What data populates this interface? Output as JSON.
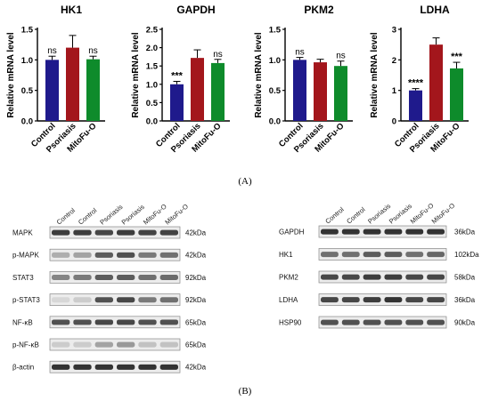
{
  "panel_a_label": "(A)",
  "panel_b_label": "(B)",
  "colors": {
    "control": "#1f1a8c",
    "psoriasis": "#a3161c",
    "mitofu": "#0e8b2b",
    "axis": "#000000"
  },
  "chart_data": [
    {
      "type": "bar",
      "title": "HK1",
      "ylabel": "Relative mRNA level",
      "categories": [
        "Control",
        "Psoriasis",
        "MitoFu-O"
      ],
      "values": [
        1.0,
        1.2,
        1.01
      ],
      "errors": [
        0.06,
        0.2,
        0.05
      ],
      "annotations": [
        "ns",
        "",
        "ns"
      ],
      "ylim": [
        0,
        1.5
      ],
      "yticks": [
        0.0,
        0.5,
        1.0,
        1.5
      ],
      "tick_labels": [
        "0.0",
        "0.5",
        "1.0",
        "1.5"
      ]
    },
    {
      "type": "bar",
      "title": "GAPDH",
      "ylabel": "Relative mRNA level",
      "categories": [
        "Control",
        "Psoriasis",
        "MitoFu-O"
      ],
      "values": [
        1.0,
        1.72,
        1.58
      ],
      "errors": [
        0.08,
        0.22,
        0.1
      ],
      "annotations": [
        "***",
        "",
        "ns"
      ],
      "ylim": [
        0,
        2.5
      ],
      "yticks": [
        0.0,
        0.5,
        1.0,
        1.5,
        2.0,
        2.5
      ],
      "tick_labels": [
        "0.0",
        "0.5",
        "1.0",
        "1.5",
        "2.0",
        "2.5"
      ]
    },
    {
      "type": "bar",
      "title": "PKM2",
      "ylabel": "Relative mRNA level",
      "categories": [
        "Control",
        "Psoriasis",
        "MitoFu-O"
      ],
      "values": [
        1.0,
        0.96,
        0.9
      ],
      "errors": [
        0.04,
        0.05,
        0.08
      ],
      "annotations": [
        "ns",
        "",
        "ns"
      ],
      "ylim": [
        0,
        1.5
      ],
      "yticks": [
        0.0,
        0.5,
        1.0,
        1.5
      ],
      "tick_labels": [
        "0.0",
        "0.5",
        "1.0",
        "1.5"
      ]
    },
    {
      "type": "bar",
      "title": "LDHA",
      "ylabel": "Relative mRNA level",
      "categories": [
        "Control",
        "Psoriasis",
        "MitoFu-O"
      ],
      "values": [
        1.0,
        2.5,
        1.72
      ],
      "errors": [
        0.06,
        0.22,
        0.2
      ],
      "annotations": [
        "****",
        "",
        "***"
      ],
      "ylim": [
        0,
        3
      ],
      "yticks": [
        0,
        1,
        2,
        3
      ],
      "tick_labels": [
        "0",
        "1",
        "2",
        "3"
      ]
    }
  ],
  "western_left": {
    "lanes": [
      "Control",
      "Control",
      "Psoriasis",
      "Psoriasis",
      "MitoFu-O",
      "MitoFu-O"
    ],
    "rows": [
      {
        "label": "MAPK",
        "size": "42kDa",
        "intensity": [
          0.85,
          0.85,
          0.8,
          0.85,
          0.82,
          0.82
        ]
      },
      {
        "label": "p-MAPK",
        "size": "42kDa",
        "intensity": [
          0.3,
          0.35,
          0.7,
          0.75,
          0.55,
          0.6
        ]
      },
      {
        "label": "STAT3",
        "size": "92kDa",
        "intensity": [
          0.5,
          0.55,
          0.7,
          0.7,
          0.6,
          0.62
        ]
      },
      {
        "label": "p-STAT3",
        "size": "92kDa",
        "intensity": [
          0.1,
          0.15,
          0.75,
          0.8,
          0.55,
          0.6
        ]
      },
      {
        "label": "NF-κB",
        "size": "65kDa",
        "intensity": [
          0.75,
          0.75,
          0.8,
          0.8,
          0.75,
          0.75
        ]
      },
      {
        "label": "p-NF-κB",
        "size": "65kDa",
        "intensity": [
          0.15,
          0.15,
          0.35,
          0.4,
          0.2,
          0.2
        ]
      },
      {
        "label": "β-actin",
        "size": "42kDa",
        "intensity": [
          0.9,
          0.9,
          0.9,
          0.9,
          0.9,
          0.9
        ]
      }
    ]
  },
  "western_right": {
    "lanes": [
      "Control",
      "Control",
      "Psoriasis",
      "Psoriasis",
      "MitoFu-O",
      "MitoFu-O"
    ],
    "rows": [
      {
        "label": "GAPDH",
        "size": "36kDa",
        "intensity": [
          0.9,
          0.9,
          0.9,
          0.9,
          0.9,
          0.9
        ]
      },
      {
        "label": "HK1",
        "size": "102kDa",
        "intensity": [
          0.6,
          0.6,
          0.7,
          0.7,
          0.6,
          0.65
        ]
      },
      {
        "label": "PKM2",
        "size": "58kDa",
        "intensity": [
          0.8,
          0.8,
          0.85,
          0.85,
          0.8,
          0.8
        ]
      },
      {
        "label": "LDHA",
        "size": "36kDa",
        "intensity": [
          0.8,
          0.8,
          0.85,
          0.9,
          0.8,
          0.8
        ]
      },
      {
        "label": "HSP90",
        "size": "90kDa",
        "intensity": [
          0.75,
          0.75,
          0.75,
          0.75,
          0.75,
          0.75
        ]
      }
    ]
  }
}
